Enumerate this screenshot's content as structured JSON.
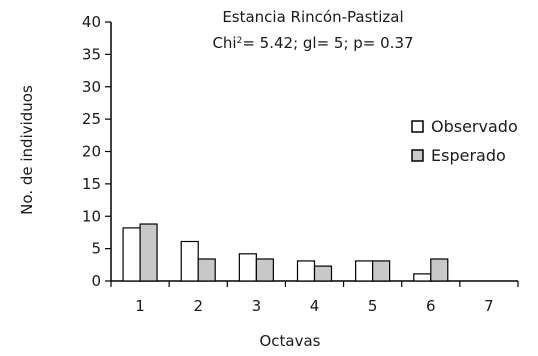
{
  "chart_data": {
    "type": "bar",
    "title": "Estancia Rincón-Pastizal",
    "subtitle_parts": {
      "prefix": "Chi",
      "sup": "2",
      "suffix": "= 5.42; gl= 5; p= 0.37"
    },
    "xlabel": "Octavas",
    "ylabel": "No. de individuos",
    "categories": [
      "1",
      "2",
      "3",
      "4",
      "5",
      "6",
      "7"
    ],
    "ylim": [
      0,
      40
    ],
    "yticks": [
      0,
      5,
      10,
      15,
      20,
      25,
      30,
      35,
      40
    ],
    "series": [
      {
        "name": "Observado",
        "values": [
          8.2,
          6.1,
          4.2,
          3.1,
          3.1,
          1.1,
          0
        ],
        "color": "#ffffff"
      },
      {
        "name": "Esperado",
        "values": [
          8.8,
          3.4,
          3.4,
          2.3,
          3.1,
          3.4,
          0
        ],
        "color": "#c8c8c8"
      }
    ],
    "legend_position": "right",
    "grid": false
  }
}
